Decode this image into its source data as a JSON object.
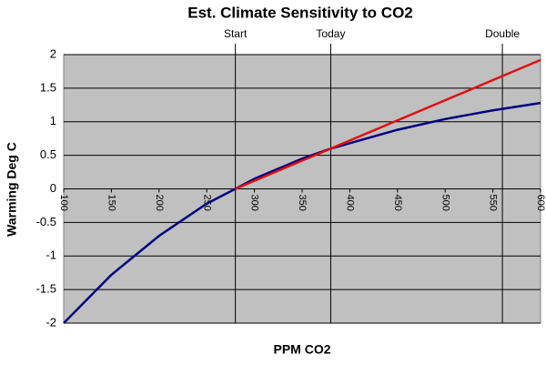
{
  "chart_data": {
    "type": "line",
    "title": "Est. Climate Sensitivity to CO2",
    "x_label": "PPM CO2",
    "y_label": "Warming Deg C",
    "x": [
      100,
      150,
      200,
      250,
      280,
      300,
      350,
      380,
      400,
      450,
      500,
      550,
      600
    ],
    "series": [
      {
        "color": "#000080",
        "values": [
          -2,
          -1.28,
          -0.7,
          -0.22,
          0,
          0.15,
          0.45,
          0.6,
          0.68,
          0.88,
          1.04,
          1.17,
          1.28
        ]
      },
      {
        "color": "#e01010",
        "values": [
          null,
          null,
          null,
          null,
          0,
          0.12,
          0.42,
          0.6,
          0.72,
          1.02,
          1.32,
          1.62,
          1.92
        ]
      }
    ],
    "xlim": [
      100,
      600
    ],
    "xticks": [
      100,
      150,
      200,
      250,
      300,
      350,
      400,
      450,
      500,
      550,
      600
    ],
    "ylim": [
      -2,
      2
    ],
    "yticks": [
      -2,
      -1.5,
      -1,
      -0.5,
      0,
      0.5,
      1,
      1.5,
      2
    ],
    "grid": true,
    "background": "#c0c0c0",
    "annotations": [
      {
        "x": 280,
        "label": "Start"
      },
      {
        "x": 380,
        "label": "Today"
      },
      {
        "x": 560,
        "label": "Double"
      }
    ]
  }
}
